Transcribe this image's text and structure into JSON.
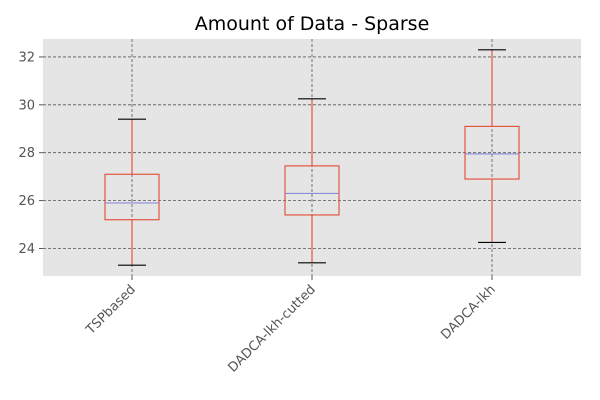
{
  "chart_data": {
    "type": "box",
    "title": "Amount of Data - Sparse",
    "xlabel": "",
    "ylabel": "",
    "categories": [
      "TSPbased",
      "DADCA-lkh-cutted",
      "DADCA-lkh"
    ],
    "boxes": [
      {
        "category": "TSPbased",
        "whisker_low": 23.3,
        "q1": 25.2,
        "median": 25.9,
        "q3": 27.1,
        "whisker_high": 29.4
      },
      {
        "category": "DADCA-lkh-cutted",
        "whisker_low": 23.4,
        "q1": 25.4,
        "median": 26.3,
        "q3": 27.45,
        "whisker_high": 30.25
      },
      {
        "category": "DADCA-lkh",
        "whisker_low": 24.25,
        "q1": 26.9,
        "median": 27.95,
        "q3": 29.1,
        "whisker_high": 32.3
      }
    ],
    "y_ticks": [
      24,
      26,
      28,
      30,
      32
    ],
    "ylim": [
      22.85,
      32.75
    ],
    "grid": true,
    "colors": {
      "box": "#e24a33",
      "median": "#8c8cd9",
      "caps": "#000000",
      "background": "#e5e5e5",
      "grid": "#555555"
    }
  }
}
